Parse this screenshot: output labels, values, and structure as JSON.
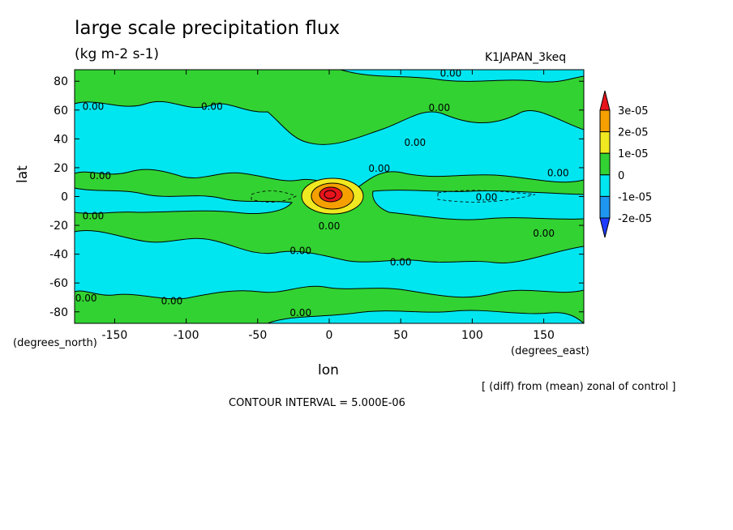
{
  "chart_data": {
    "type": "heatmap",
    "title": "large scale precipitation flux",
    "units": "(kg m-2 s-1)",
    "run_label": "K1JAPAN_3keq",
    "xlabel": "lon",
    "ylabel": "lat",
    "x_units": "(degrees_east)",
    "y_units": "(degrees_north)",
    "xlim": [
      -178,
      178
    ],
    "ylim": [
      -88,
      88
    ],
    "x_ticks": [
      -150,
      -100,
      -50,
      0,
      50,
      100,
      150
    ],
    "y_ticks": [
      -80,
      -60,
      -40,
      -20,
      0,
      20,
      40,
      60,
      80
    ],
    "x_tick_labels": [
      "-150",
      "-100",
      "-50",
      "0",
      "50",
      "100",
      "150"
    ],
    "y_tick_labels": [
      "-80",
      "-60",
      "-40",
      "-20",
      "0",
      "20",
      "40",
      "60",
      "80"
    ],
    "colorbar": {
      "levels": [
        "3e-05",
        "2e-05",
        "1e-05",
        "0",
        "-1e-05",
        "-2e-05"
      ],
      "colors": [
        "#e8141c",
        "#f5a000",
        "#f0e820",
        "#32d232",
        "#00e6f0",
        "#1e96f0",
        "#1e3cff"
      ]
    },
    "contour_labels": [
      {
        "text": "0.00",
        "lon": 35,
        "lat": 20
      },
      {
        "text": "0.00",
        "lon": 60,
        "lat": 38
      },
      {
        "text": "0.00",
        "lon": 110,
        "lat": 0
      },
      {
        "text": "0.00",
        "lon": -160,
        "lat": 15
      },
      {
        "text": "0.00",
        "lon": 0,
        "lat": -20
      },
      {
        "text": "0.00",
        "lon": -20,
        "lat": -37
      },
      {
        "text": "0.00",
        "lon": 50,
        "lat": -45
      },
      {
        "text": "0.00",
        "lon": 150,
        "lat": -25
      },
      {
        "text": "0.00",
        "lon": -110,
        "lat": -72
      },
      {
        "text": "0.00",
        "lon": -170,
        "lat": -70
      },
      {
        "text": "0.00",
        "lon": -20,
        "lat": -80
      },
      {
        "text": "0.00",
        "lon": -165,
        "lat": 63
      },
      {
        "text": "0.00",
        "lon": -82,
        "lat": 63
      },
      {
        "text": "0.00",
        "lon": 77,
        "lat": 62
      },
      {
        "text": "0.00",
        "lon": 85,
        "lat": 86
      },
      {
        "text": "0.00",
        "lon": 160,
        "lat": 17
      },
      {
        "text": "0.00",
        "lon": -165,
        "lat": -13
      }
    ],
    "field_regions": [
      {
        "value": "0",
        "shape": "background",
        "note": "0 to 1e-05 band covers most of domain"
      },
      {
        "value": "-1e-05",
        "region": "northern mid-latitude band",
        "lon": [
          -178,
          178
        ],
        "lat": [
          5,
          60
        ]
      },
      {
        "value": "-1e-05",
        "region": "southern mid-latitude band",
        "lon": [
          -178,
          178
        ],
        "lat": [
          -75,
          -25
        ]
      },
      {
        "value": "3e-05",
        "region": "equatorial maximum",
        "lon": 0,
        "lat": 0
      }
    ],
    "contour_interval_text": "CONTOUR INTERVAL = 5.000E-06",
    "note": "[ (diff) from (mean) zonal of control ]"
  }
}
